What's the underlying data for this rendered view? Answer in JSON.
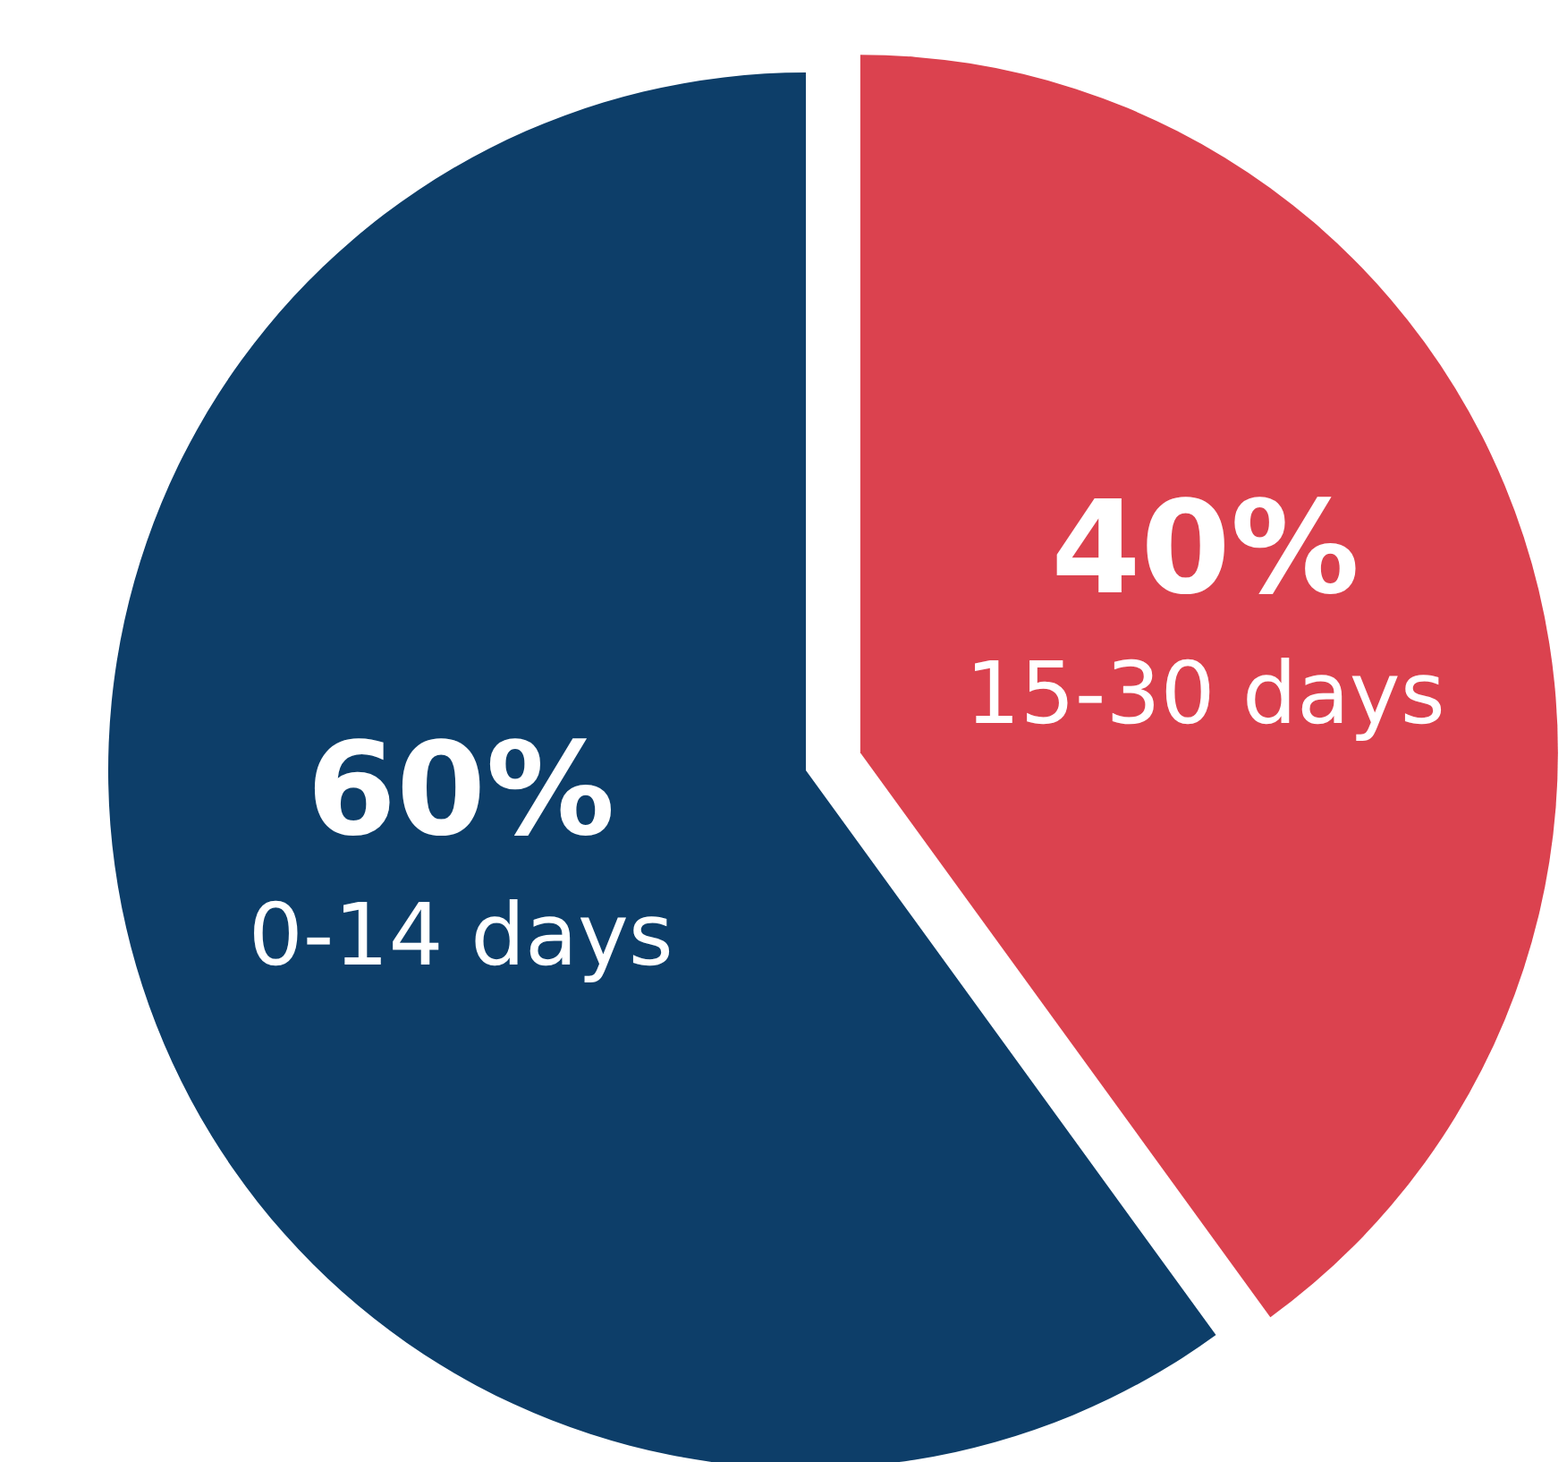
{
  "chart_data": {
    "type": "pie",
    "categories": [
      "15-30 days",
      "0-14 days"
    ],
    "values": [
      40,
      60
    ],
    "colors": [
      "#db424f",
      "#0d3e69"
    ],
    "value_labels": [
      "40%",
      "60%"
    ]
  }
}
